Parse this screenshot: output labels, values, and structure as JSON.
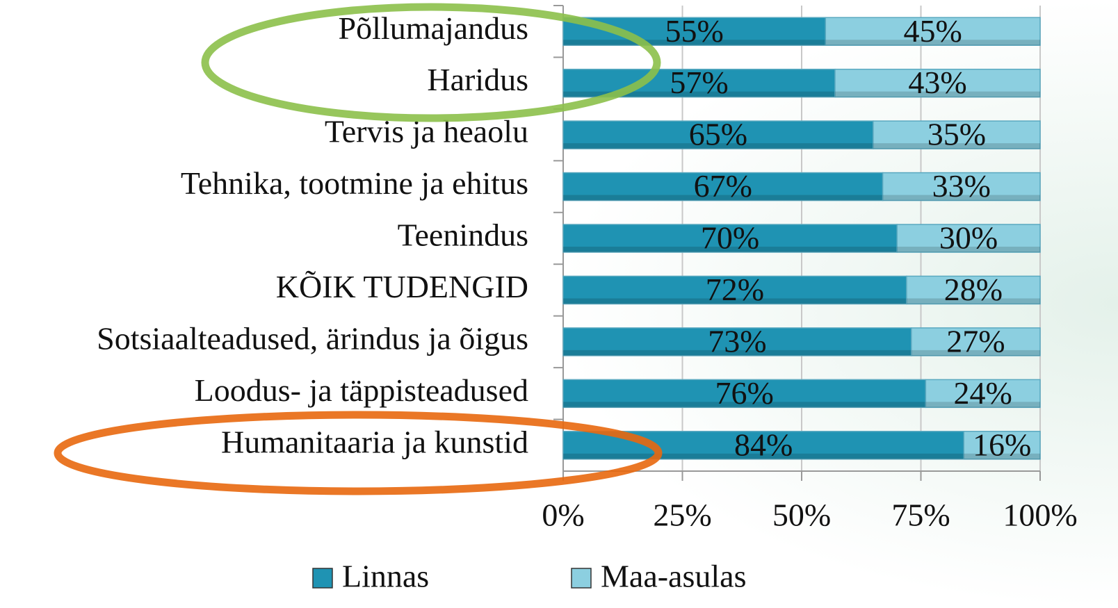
{
  "chart_data": {
    "type": "stacked-bar-horizontal",
    "categories": [
      "Põllumajandus",
      "Haridus",
      "Tervis ja heaolu",
      "Tehnika, tootmine ja ehitus",
      "Teenindus",
      "KÕIK TUDENGID",
      "Sotsiaalteadused, ärindus ja õigus",
      "Loodus- ja täppisteadused",
      "Humanitaaria ja kunstid"
    ],
    "series": [
      {
        "name": "Linnas",
        "color": "#1f93b3",
        "values": [
          55,
          57,
          65,
          67,
          70,
          72,
          73,
          76,
          84
        ],
        "value_labels": [
          "55%",
          "57%",
          "65%",
          "67%",
          "70%",
          "72%",
          "73%",
          "76%",
          "84%"
        ]
      },
      {
        "name": "Maa-asulas",
        "color": "#8ccfe0",
        "values": [
          45,
          43,
          35,
          33,
          30,
          28,
          27,
          24,
          16
        ],
        "value_labels": [
          "45%",
          "43%",
          "35%",
          "33%",
          "30%",
          "28%",
          "27%",
          "24%",
          "16%"
        ]
      }
    ],
    "xlim": [
      0,
      100
    ],
    "xticks": [
      {
        "value": 0,
        "label": "0%"
      },
      {
        "value": 25,
        "label": "25%"
      },
      {
        "value": 50,
        "label": "50%"
      },
      {
        "value": 75,
        "label": "75%"
      },
      {
        "value": 100,
        "label": "100%"
      }
    ],
    "grid": true
  }
}
